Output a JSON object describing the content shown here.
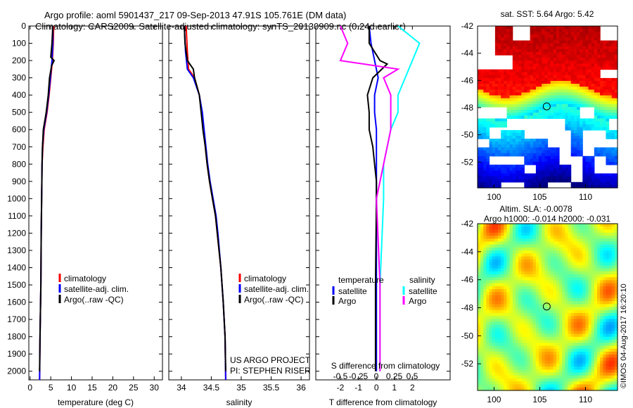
{
  "title": {
    "line1": "Argo profile: aoml 5901437_217 09-Sep-2013 47.91S 105.761E (DM data)",
    "line2": "Climatology: CARS2009. Satellite-adjusted climatology: synTS_20130909.nc (0.24d earlier)"
  },
  "chart_data": [
    {
      "type": "line",
      "name": "temperature",
      "xlabel": "temperature (deg C)",
      "xlim": [
        -0.3,
        32
      ],
      "ylim": [
        2050,
        0
      ],
      "xticks": [
        0,
        5,
        10,
        15,
        20,
        25,
        30
      ],
      "yticks": [
        0,
        100,
        200,
        300,
        400,
        500,
        600,
        700,
        800,
        900,
        1000,
        1100,
        1200,
        1300,
        1400,
        1500,
        1600,
        1700,
        1800,
        1900,
        2000
      ],
      "legend": [
        "climatology",
        "satellite-adj. clim.",
        "Argo(..raw -QC)"
      ],
      "series": [
        {
          "name": "climatology",
          "color": "#ff0000",
          "depth": [
            0,
            100,
            200,
            300,
            400,
            500,
            600,
            700,
            800,
            1000,
            1200,
            1500,
            1800,
            2050
          ],
          "values": [
            5.7,
            5.6,
            5.4,
            5.0,
            4.6,
            4.1,
            3.4,
            3.1,
            2.9,
            2.8,
            2.7,
            2.6,
            2.4,
            2.3
          ]
        },
        {
          "name": "satellite-adj. clim.",
          "color": "#0000ff",
          "depth": [
            0,
            100,
            200,
            300,
            400,
            500,
            600,
            700,
            800,
            1000,
            1200,
            1500,
            1800,
            2050
          ],
          "values": [
            5.5,
            5.5,
            5.3,
            4.9,
            4.5,
            4.0,
            3.3,
            3.0,
            2.9,
            2.8,
            2.7,
            2.6,
            2.4,
            2.3
          ]
        },
        {
          "name": "Argo(..raw -QC)",
          "color": "#000000",
          "depth": [
            0,
            100,
            180,
            200,
            230,
            300,
            400,
            500,
            600,
            700,
            800,
            1000,
            1200,
            1500,
            1800,
            2000
          ],
          "values": [
            5.5,
            5.3,
            5.0,
            5.8,
            5.2,
            4.7,
            4.4,
            3.9,
            3.2,
            3.0,
            2.9,
            2.8,
            2.7,
            2.6,
            2.4,
            2.3
          ]
        }
      ]
    },
    {
      "type": "line",
      "name": "salinity",
      "xlabel": "salinity",
      "xlim": [
        33.79,
        36.14
      ],
      "ylim": [
        2050,
        0
      ],
      "xticks": [
        34,
        34.5,
        35,
        35.5,
        36
      ],
      "legend": [
        "climatology",
        "satellite-adj. clim.",
        "Argo(..raw -QC)"
      ],
      "annotation": [
        "US ARGO PROJECT",
        "PI: STEPHEN RISER"
      ],
      "series": [
        {
          "name": "climatology",
          "color": "#ff0000",
          "depth": [
            0,
            150,
            250,
            300,
            400,
            500,
            600,
            700,
            800,
            900,
            1000,
            1100,
            1200,
            1400,
            1600,
            1800,
            2050
          ],
          "values": [
            34.08,
            34.1,
            34.12,
            34.22,
            34.3,
            34.34,
            34.37,
            34.4,
            34.43,
            34.47,
            34.52,
            34.57,
            34.6,
            34.66,
            34.7,
            34.73,
            34.74
          ]
        },
        {
          "name": "satellite-adj. clim.",
          "color": "#0000ff",
          "depth": [
            0,
            150,
            250,
            300,
            400,
            500,
            600,
            700,
            800,
            900,
            1000,
            1100,
            1200,
            1400,
            1600,
            1800,
            2050
          ],
          "values": [
            34.05,
            34.07,
            34.1,
            34.2,
            34.3,
            34.35,
            34.38,
            34.41,
            34.44,
            34.48,
            34.53,
            34.58,
            34.61,
            34.66,
            34.7,
            34.73,
            34.74
          ]
        },
        {
          "name": "Argo(..raw -QC)",
          "color": "#000000",
          "depth": [
            0,
            100,
            200,
            250,
            300,
            400,
            500,
            600,
            700,
            800,
            900,
            1000,
            1100,
            1200,
            1400,
            1600,
            1800,
            2000
          ],
          "values": [
            34.05,
            34.06,
            34.1,
            34.2,
            34.22,
            34.3,
            34.33,
            34.36,
            34.4,
            34.43,
            34.47,
            34.52,
            34.57,
            34.6,
            34.66,
            34.7,
            34.73,
            34.74
          ]
        }
      ]
    },
    {
      "type": "line",
      "name": "difference",
      "xlabel": "T difference from climatology",
      "x2label": "S difference from climatology",
      "xlim": [
        -3.37,
        4.1
      ],
      "ylim": [
        2050,
        0
      ],
      "xticks": [
        -2,
        -1,
        0,
        1,
        2
      ],
      "x2ticks": [
        "-0.5",
        "-0.25",
        "0",
        "0.25",
        "0.5"
      ],
      "legend": {
        "temperature": [
          "satellite",
          "Argo"
        ],
        "salinity": [
          "satellite",
          "Argo"
        ],
        "temperature_label": "temperature",
        "salinity_label": "salinity"
      },
      "series": [
        {
          "name": "T satellite",
          "color": "#0000ff",
          "depth": [
            0,
            100,
            200,
            300,
            400,
            500,
            600,
            800,
            1000,
            1500,
            2000
          ],
          "values": [
            -0.4,
            -0.3,
            -0.1,
            0.1,
            -0.1,
            -0.1,
            0,
            0,
            0,
            0,
            0
          ]
        },
        {
          "name": "T Argo",
          "color": "#000000",
          "depth": [
            0,
            100,
            200,
            220,
            300,
            400,
            500,
            600,
            700,
            800,
            900,
            1000,
            1500,
            2000
          ],
          "values": [
            -0.4,
            -0.4,
            0.2,
            0.6,
            -0.2,
            -0.5,
            -0.4,
            -0.4,
            -0.2,
            -0.1,
            0,
            0,
            -0.05,
            -0.05
          ]
        },
        {
          "name": "S satellite",
          "color": "#00ffff",
          "depth": [
            0,
            100,
            200,
            300,
            400,
            500,
            600,
            800,
            1000,
            1500,
            2000
          ],
          "values": [
            0.3,
            0.6,
            0.5,
            0.4,
            0.3,
            0.3,
            0.2,
            0.1,
            0.1,
            0.05,
            0.05
          ]
        },
        {
          "name": "S Argo",
          "color": "#ff00ff",
          "depth": [
            0,
            100,
            200,
            250,
            300,
            400,
            600,
            800,
            1000,
            1500,
            2000
          ],
          "values": [
            -0.5,
            -0.4,
            -0.5,
            0.3,
            0.1,
            0.2,
            0.2,
            0.1,
            0,
            0.05,
            0.05
          ]
        }
      ]
    },
    {
      "type": "heatmap",
      "name": "sst-map",
      "title": "sat. SST: 5.64 Argo: 5.42",
      "xlim": [
        98.2,
        113.5
      ],
      "ylim": [
        -53.9,
        -42
      ],
      "xticks": [
        100,
        105,
        110
      ],
      "yticks": [
        -42,
        -44,
        -46,
        -48,
        -50,
        -52
      ],
      "marker": [
        105.76,
        -47.91
      ]
    },
    {
      "type": "heatmap",
      "name": "sla-map",
      "title1": "Altim. SLA: -0.0078",
      "title2": "Argo h1000: -0.014 h2000: -0.031",
      "xlim": [
        98.2,
        113.5
      ],
      "ylim": [
        -53.9,
        -42
      ],
      "xticks": [
        100,
        105,
        110
      ],
      "yticks": [
        -42,
        -44,
        -46,
        -48,
        -50,
        -52
      ],
      "marker": [
        105.76,
        -47.91
      ],
      "credit": "©IMOS 04-Aug-2017 16:20:10"
    }
  ]
}
